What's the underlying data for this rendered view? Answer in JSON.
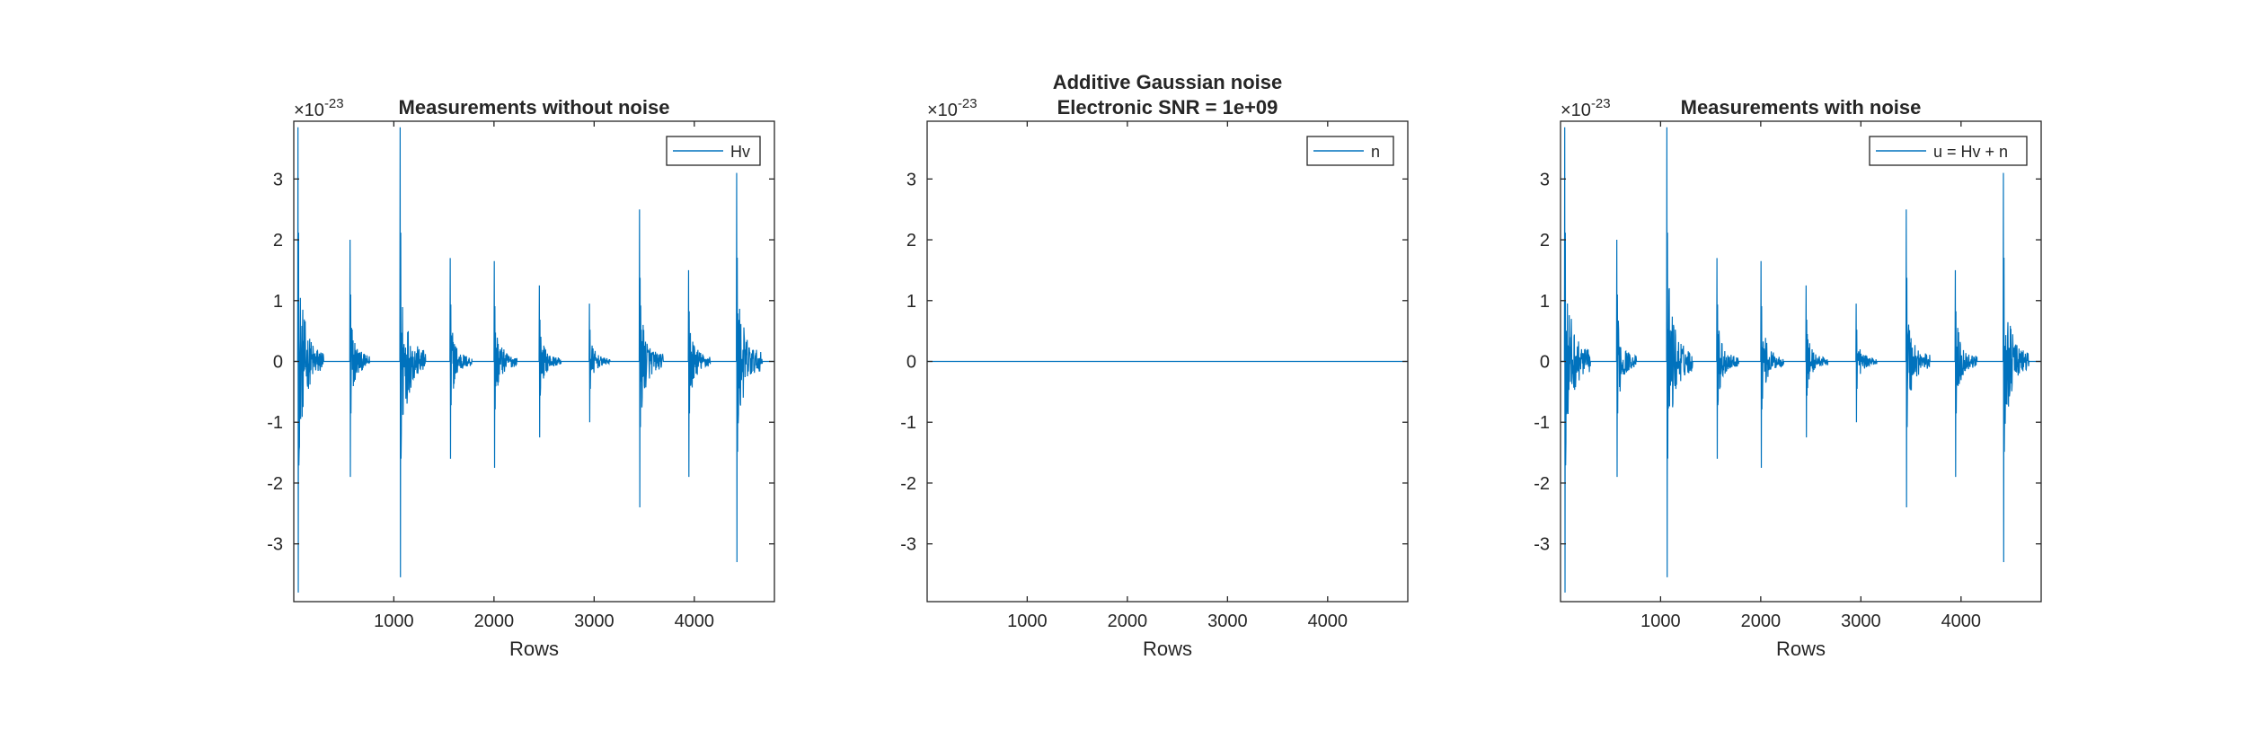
{
  "colors": {
    "series": "#0072BD",
    "axes": "#262626",
    "background": "#ffffff"
  },
  "chart_data": [
    {
      "type": "line",
      "title": [
        "Measurements without noise"
      ],
      "xlabel": "Rows",
      "ylabel": "",
      "y_exponent_label": "×10",
      "y_exponent": "-23",
      "xlim": [
        1,
        4800
      ],
      "ylim": [
        -3.95,
        3.95
      ],
      "xticks": [
        1000,
        2000,
        3000,
        4000
      ],
      "yticks": [
        -3,
        -2,
        -1,
        0,
        1,
        2,
        3
      ],
      "grid": false,
      "legend_position": "top-right",
      "series": [
        {
          "name": "Hv",
          "bursts": [
            {
              "x": 40,
              "peak": 3.85,
              "trough": -3.8,
              "width": 260
            },
            {
              "x": 560,
              "peak": 2.0,
              "trough": -1.9,
              "width": 200
            },
            {
              "x": 1060,
              "peak": 3.85,
              "trough": -3.55,
              "width": 260
            },
            {
              "x": 1560,
              "peak": 1.7,
              "trough": -1.6,
              "width": 220
            },
            {
              "x": 2000,
              "peak": 1.65,
              "trough": -1.75,
              "width": 230
            },
            {
              "x": 2450,
              "peak": 1.25,
              "trough": -1.25,
              "width": 220
            },
            {
              "x": 2950,
              "peak": 0.95,
              "trough": -1.0,
              "width": 210
            },
            {
              "x": 3450,
              "peak": 2.5,
              "trough": -2.4,
              "width": 240
            },
            {
              "x": 3940,
              "peak": 1.5,
              "trough": -1.9,
              "width": 220
            },
            {
              "x": 4420,
              "peak": 3.1,
              "trough": -3.3,
              "width": 260
            }
          ]
        }
      ]
    },
    {
      "type": "line",
      "title": [
        "Additive Gaussian noise",
        "Electronic SNR = 1e+09"
      ],
      "xlabel": "Rows",
      "ylabel": "",
      "y_exponent_label": "×10",
      "y_exponent": "-23",
      "xlim": [
        1,
        4800
      ],
      "ylim": [
        -3.95,
        3.95
      ],
      "xticks": [
        1000,
        2000,
        3000,
        4000
      ],
      "yticks": [
        -3,
        -2,
        -1,
        0,
        1,
        2,
        3
      ],
      "grid": false,
      "legend_position": "top-right",
      "series": [
        {
          "name": "n",
          "constant": 0
        }
      ]
    },
    {
      "type": "line",
      "title": [
        "Measurements with noise"
      ],
      "xlabel": "Rows",
      "ylabel": "",
      "y_exponent_label": "×10",
      "y_exponent": "-23",
      "xlim": [
        1,
        4800
      ],
      "ylim": [
        -3.95,
        3.95
      ],
      "xticks": [
        1000,
        2000,
        3000,
        4000
      ],
      "yticks": [
        -3,
        -2,
        -1,
        0,
        1,
        2,
        3
      ],
      "grid": false,
      "legend_position": "top-right",
      "series": [
        {
          "name": "u = Hv + n",
          "bursts": [
            {
              "x": 40,
              "peak": 3.85,
              "trough": -3.8,
              "width": 260
            },
            {
              "x": 560,
              "peak": 2.0,
              "trough": -1.9,
              "width": 200
            },
            {
              "x": 1060,
              "peak": 3.85,
              "trough": -3.55,
              "width": 260
            },
            {
              "x": 1560,
              "peak": 1.7,
              "trough": -1.6,
              "width": 220
            },
            {
              "x": 2000,
              "peak": 1.65,
              "trough": -1.75,
              "width": 230
            },
            {
              "x": 2450,
              "peak": 1.25,
              "trough": -1.25,
              "width": 220
            },
            {
              "x": 2950,
              "peak": 0.95,
              "trough": -1.0,
              "width": 210
            },
            {
              "x": 3450,
              "peak": 2.5,
              "trough": -2.4,
              "width": 240
            },
            {
              "x": 3940,
              "peak": 1.5,
              "trough": -1.9,
              "width": 220
            },
            {
              "x": 4420,
              "peak": 3.1,
              "trough": -3.3,
              "width": 260
            }
          ]
        }
      ]
    }
  ]
}
